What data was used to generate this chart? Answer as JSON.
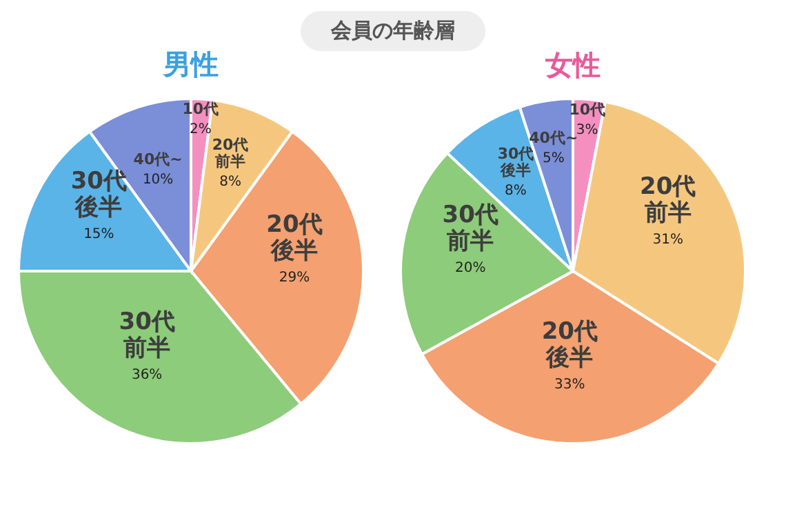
{
  "chart_data": [
    {
      "type": "pie",
      "title": "男性",
      "categories": [
        "10代",
        "20代前半",
        "20代後半",
        "30代前半",
        "30代後半",
        "40代~"
      ],
      "values": [
        2,
        8,
        29,
        36,
        15,
        10
      ],
      "value_labels": [
        "2%",
        "8%",
        "29%",
        "36%",
        "15%",
        "10%"
      ],
      "colors": [
        "#f48fc0",
        "#f5c77e",
        "#f4a070",
        "#8dcc7a",
        "#5ab4e8",
        "#7b8ed8"
      ],
      "annotations": [
        "会員の年齢層"
      ]
    },
    {
      "type": "pie",
      "title": "女性",
      "categories": [
        "10代",
        "20代前半",
        "20代後半",
        "30代前半",
        "30代後半",
        "40代~"
      ],
      "values": [
        3,
        31,
        33,
        20,
        8,
        5
      ],
      "value_labels": [
        "3%",
        "31%",
        "33%",
        "20%",
        "8%",
        "5%"
      ],
      "colors": [
        "#f48fc0",
        "#f5c77e",
        "#f4a070",
        "#8dcc7a",
        "#5ab4e8",
        "#7b8ed8"
      ]
    }
  ]
}
